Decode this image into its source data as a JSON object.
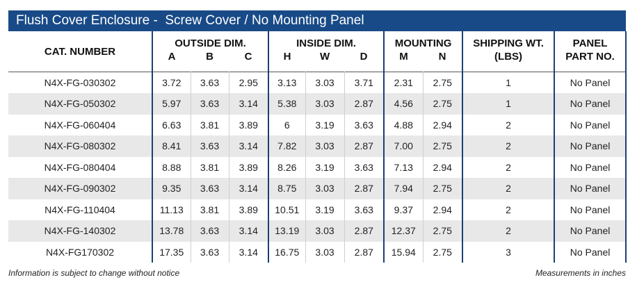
{
  "title": "Flush Cover Enclosure -  Screw Cover / No Mounting Panel",
  "headers": {
    "cat_number": "CAT. NUMBER",
    "outside_dim": "OUTSIDE DIM.",
    "inside_dim": "INSIDE DIM.",
    "mounting": "MOUNTING",
    "shipping_wt": "SHIPPING WT.",
    "shipping_unit": "(LBS)",
    "panel": "PANEL",
    "panel_part": "PART NO.",
    "a": "A",
    "b": "B",
    "c": "C",
    "h": "H",
    "w": "W",
    "d": "D",
    "m": "M",
    "n": "N"
  },
  "rows": [
    {
      "cat": "N4X-FG-030302",
      "a": "3.72",
      "b": "3.63",
      "c": "2.95",
      "h": "3.13",
      "w": "3.03",
      "d": "3.71",
      "m": "2.31",
      "n": "2.75",
      "wt": "1",
      "panel": "No Panel"
    },
    {
      "cat": "N4X-FG-050302",
      "a": "5.97",
      "b": "3.63",
      "c": "3.14",
      "h": "5.38",
      "w": "3.03",
      "d": "2.87",
      "m": "4.56",
      "n": "2.75",
      "wt": "1",
      "panel": "No Panel"
    },
    {
      "cat": "N4X-FG-060404",
      "a": "6.63",
      "b": "3.81",
      "c": "3.89",
      "h": "6",
      "w": "3.19",
      "d": "3.63",
      "m": "4.88",
      "n": "2.94",
      "wt": "2",
      "panel": "No Panel"
    },
    {
      "cat": "N4X-FG-080302",
      "a": "8.41",
      "b": "3.63",
      "c": "3.14",
      "h": "7.82",
      "w": "3.03",
      "d": "2.87",
      "m": "7.00",
      "n": "2.75",
      "wt": "2",
      "panel": "No Panel"
    },
    {
      "cat": "N4X-FG-080404",
      "a": "8.88",
      "b": "3.81",
      "c": "3.89",
      "h": "8.26",
      "w": "3.19",
      "d": "3.63",
      "m": "7.13",
      "n": "2.94",
      "wt": "2",
      "panel": "No Panel"
    },
    {
      "cat": "N4X-FG-090302",
      "a": "9.35",
      "b": "3.63",
      "c": "3.14",
      "h": "8.75",
      "w": "3.03",
      "d": "2.87",
      "m": "7.94",
      "n": "2.75",
      "wt": "2",
      "panel": "No Panel"
    },
    {
      "cat": "N4X-FG-110404",
      "a": "11.13",
      "b": "3.81",
      "c": "3.89",
      "h": "10.51",
      "w": "3.19",
      "d": "3.63",
      "m": "9.37",
      "n": "2.94",
      "wt": "2",
      "panel": "No Panel"
    },
    {
      "cat": "N4X-FG-140302",
      "a": "13.78",
      "b": "3.63",
      "c": "3.14",
      "h": "13.19",
      "w": "3.03",
      "d": "2.87",
      "m": "12.37",
      "n": "2.75",
      "wt": "2",
      "panel": "No Panel"
    },
    {
      "cat": "N4X-FG170302",
      "a": "17.35",
      "b": "3.63",
      "c": "3.14",
      "h": "16.75",
      "w": "3.03",
      "d": "2.87",
      "m": "15.94",
      "n": "2.75",
      "wt": "3",
      "panel": "No Panel"
    }
  ],
  "footer": {
    "left": "Information is subject to change without notice",
    "right": "Measurements in inches"
  }
}
